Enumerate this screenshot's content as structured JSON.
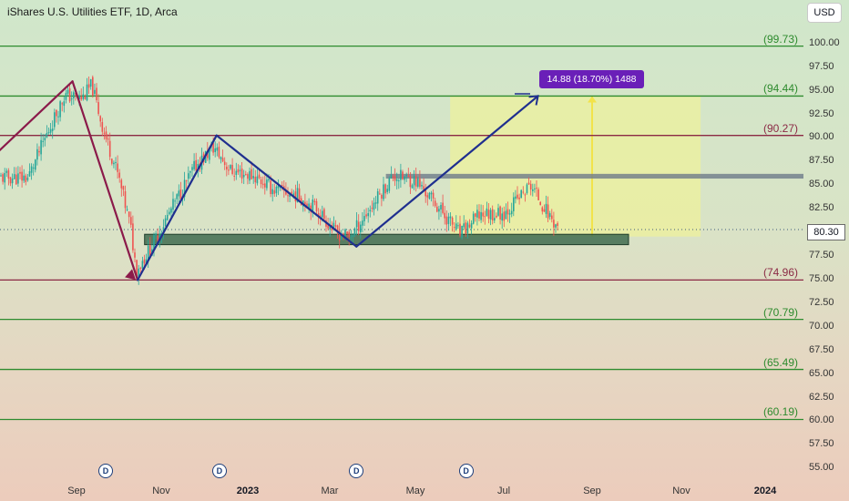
{
  "header": {
    "title": "iShares U.S. Utilities ETF, 1D, Arca",
    "currency": "USD"
  },
  "current_price": "80.30",
  "measure_label": "14.88 (18.70%) 1488",
  "level_tags": [
    {
      "text": "(99.73)",
      "value": 99.73,
      "color": "#2e8b2e"
    },
    {
      "text": "(94.44)",
      "value": 94.44,
      "color": "#2e8b2e"
    },
    {
      "text": "(90.27)",
      "value": 90.27,
      "color": "#8b2a45"
    },
    {
      "text": "(74.96)",
      "value": 74.96,
      "color": "#8b2a45"
    },
    {
      "text": "(70.79)",
      "value": 70.79,
      "color": "#2e8b2e"
    },
    {
      "text": "(65.49)",
      "value": 65.49,
      "color": "#2e8b2e"
    },
    {
      "text": "(60.19)",
      "value": 60.19,
      "color": "#2e8b2e"
    }
  ],
  "y_ticks": [
    "100.00",
    "97.50",
    "95.00",
    "92.50",
    "90.00",
    "87.50",
    "85.00",
    "82.50",
    "80.00",
    "77.50",
    "75.00",
    "72.50",
    "70.00",
    "67.50",
    "65.00",
    "62.50",
    "60.00",
    "57.50",
    "55.00"
  ],
  "x_ticks": [
    {
      "label": "Sep",
      "bold": false
    },
    {
      "label": "Nov",
      "bold": false
    },
    {
      "label": "2023",
      "bold": true
    },
    {
      "label": "Mar",
      "bold": false
    },
    {
      "label": "May",
      "bold": false
    },
    {
      "label": "Jul",
      "bold": false
    },
    {
      "label": "Sep",
      "bold": false
    },
    {
      "label": "Nov",
      "bold": false
    },
    {
      "label": "2024",
      "bold": true
    }
  ],
  "dividend_marker": "D",
  "colors": {
    "up": "#26a69a",
    "down": "#ef5350",
    "support_line": "#2e8b2e",
    "resistance_line": "#8b2a45",
    "trend": "#1f2f8f",
    "drop": "#8b1a4a",
    "zone": "#3f6b4f",
    "range_fill": "#f5f58c",
    "gray_zone": "#6e7b8a"
  },
  "chart_data": {
    "type": "candlestick",
    "title": "iShares U.S. Utilities ETF, 1D, Arca",
    "ylim": [
      55,
      101.5
    ],
    "y_scale": "linear",
    "grid": false,
    "horizontal_levels": [
      99.73,
      94.44,
      90.27,
      74.96,
      70.79,
      65.49,
      60.19
    ],
    "close_path": [
      {
        "date": "2022-07-15",
        "close": 85.8
      },
      {
        "date": "2022-08-01",
        "close": 90.0
      },
      {
        "date": "2022-08-20",
        "close": 94.5
      },
      {
        "date": "2022-09-05",
        "close": 94.2
      },
      {
        "date": "2022-09-12",
        "close": 95.6
      },
      {
        "date": "2022-09-20",
        "close": 91.0
      },
      {
        "date": "2022-10-01",
        "close": 86.0
      },
      {
        "date": "2022-10-10",
        "close": 80.5
      },
      {
        "date": "2022-10-14",
        "close": 76.0
      },
      {
        "date": "2022-10-25",
        "close": 78.5
      },
      {
        "date": "2022-11-10",
        "close": 83.0
      },
      {
        "date": "2022-11-25",
        "close": 87.0
      },
      {
        "date": "2022-12-08",
        "close": 89.0
      },
      {
        "date": "2022-12-20",
        "close": 86.5
      },
      {
        "date": "2023-01-05",
        "close": 86.0
      },
      {
        "date": "2023-01-20",
        "close": 84.5
      },
      {
        "date": "2023-02-05",
        "close": 84.0
      },
      {
        "date": "2023-02-20",
        "close": 82.5
      },
      {
        "date": "2023-03-05",
        "close": 80.0
      },
      {
        "date": "2023-03-15",
        "close": 79.5
      },
      {
        "date": "2023-04-01",
        "close": 83.0
      },
      {
        "date": "2023-04-15",
        "close": 86.0
      },
      {
        "date": "2023-05-01",
        "close": 85.5
      },
      {
        "date": "2023-05-15",
        "close": 83.0
      },
      {
        "date": "2023-06-01",
        "close": 79.8
      },
      {
        "date": "2023-06-15",
        "close": 82.0
      },
      {
        "date": "2023-07-01",
        "close": 82.0
      },
      {
        "date": "2023-07-20",
        "close": 85.0
      },
      {
        "date": "2023-08-01",
        "close": 82.0
      },
      {
        "date": "2023-08-09",
        "close": 80.3
      }
    ],
    "trendlines": [
      {
        "from": {
          "date": "2022-06-10",
          "price": 88.0
        },
        "to": {
          "date": "2022-08-28",
          "price": 96.0
        }
      },
      {
        "from": {
          "date": "2022-08-28",
          "price": 96.0
        },
        "to": {
          "date": "2022-10-15",
          "price": 74.96
        }
      },
      {
        "from": {
          "date": "2022-10-15",
          "price": 74.96
        },
        "to": {
          "date": "2022-12-10",
          "price": 90.27
        }
      },
      {
        "from": {
          "date": "2022-12-10",
          "price": 90.27
        },
        "to": {
          "date": "2023-03-20",
          "price": 78.5
        }
      },
      {
        "from": {
          "date": "2023-03-20",
          "price": 78.5
        },
        "to": {
          "date": "2023-07-25",
          "price": 94.44
        }
      }
    ],
    "zones": [
      {
        "name": "support",
        "price_low": 78.7,
        "price_high": 79.8,
        "from": "2022-10-20",
        "to": "2023-09-20"
      },
      {
        "name": "resistance",
        "price_low": 85.7,
        "price_high": 86.2,
        "from": "2023-04-10",
        "to": "2024-02-20"
      }
    ],
    "target_range": {
      "from": "2023-05-25",
      "to": "2023-11-15",
      "price_low": 79.56,
      "price_high": 94.44
    },
    "dividend_dates": [
      "2022-09-22",
      "2022-12-12",
      "2023-03-20",
      "2023-06-05"
    ]
  }
}
